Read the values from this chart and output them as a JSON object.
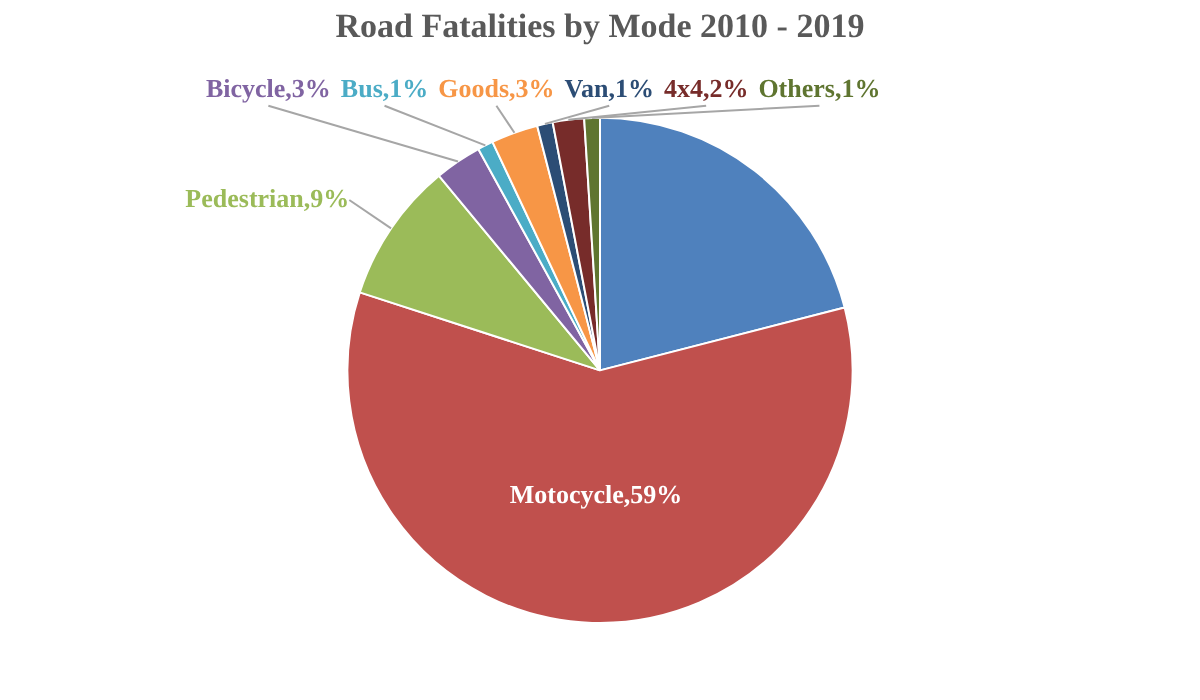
{
  "chart_data": {
    "type": "pie",
    "title": "Road Fatalities by Mode 2010 - 2019",
    "categories": [
      null,
      "Motocycle",
      "Pedestrian",
      "Bicycle",
      "Bus",
      "Goods",
      "Van",
      "4x4",
      "Others"
    ],
    "values": [
      21,
      59,
      9,
      3,
      1,
      3,
      1,
      2,
      1
    ],
    "colors": [
      "#4f81bd",
      "#c0504d",
      "#9bbb59",
      "#8064a2",
      "#4bacc6",
      "#f79646",
      "#2c4d75",
      "#772c2a",
      "#5f7530"
    ],
    "value_labels": [
      null,
      "59%",
      "9%",
      "3%",
      "1%",
      "3%",
      "1%",
      "2%",
      "1%"
    ],
    "legend": false
  }
}
